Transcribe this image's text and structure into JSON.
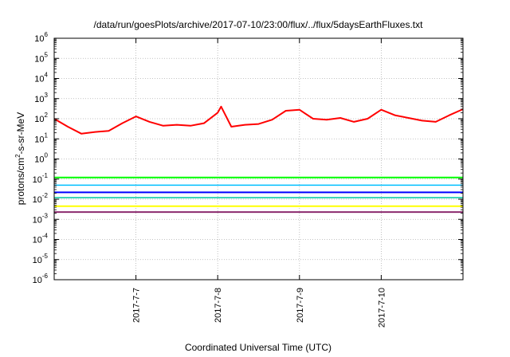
{
  "chart_data": {
    "type": "line",
    "title": "/data/run/goesPlots/archive/2017-07-10/23:00/flux/../flux/5daysEarthFluxes.txt",
    "xlabel": "Coordinated Universal Time (UTC)",
    "ylabel": {
      "pre": "protons/cm",
      "sup": "2",
      "post": "-s-sr-MeV"
    },
    "yscale": "log",
    "ylim": [
      1e-06,
      1000000.0
    ],
    "xlim": [
      "2017-07-06 00:00",
      "2017-07-11 00:00"
    ],
    "y_ticks": [
      {
        "base": "10",
        "exp": "-6"
      },
      {
        "base": "10",
        "exp": "-5"
      },
      {
        "base": "10",
        "exp": "-4"
      },
      {
        "base": "10",
        "exp": "-3"
      },
      {
        "base": "10",
        "exp": "-2"
      },
      {
        "base": "10",
        "exp": "-1"
      },
      {
        "base": "10",
        "exp": "0"
      },
      {
        "base": "10",
        "exp": "1"
      },
      {
        "base": "10",
        "exp": "2"
      },
      {
        "base": "10",
        "exp": "3"
      },
      {
        "base": "10",
        "exp": "4"
      },
      {
        "base": "10",
        "exp": "5"
      },
      {
        "base": "10",
        "exp": "6"
      }
    ],
    "x_ticks": [
      "2017-7-7",
      "2017-7-8",
      "2017-7-9",
      "2017-7-10"
    ],
    "grid": true,
    "series": [
      {
        "color": "#ff0000",
        "width": 2,
        "x": [
          "2017-07-06 00:00",
          "2017-07-06 04:00",
          "2017-07-06 08:00",
          "2017-07-06 12:00",
          "2017-07-06 16:00",
          "2017-07-06 20:00",
          "2017-07-07 00:00",
          "2017-07-07 04:00",
          "2017-07-07 08:00",
          "2017-07-07 12:00",
          "2017-07-07 16:00",
          "2017-07-07 20:00",
          "2017-07-08 00:00",
          "2017-07-08 01:00",
          "2017-07-08 04:00",
          "2017-07-08 08:00",
          "2017-07-08 12:00",
          "2017-07-08 16:00",
          "2017-07-08 20:00",
          "2017-07-09 00:00",
          "2017-07-09 04:00",
          "2017-07-09 08:00",
          "2017-07-09 12:00",
          "2017-07-09 16:00",
          "2017-07-09 20:00",
          "2017-07-10 00:00",
          "2017-07-10 04:00",
          "2017-07-10 08:00",
          "2017-07-10 12:00",
          "2017-07-10 16:00",
          "2017-07-10 20:00",
          "2017-07-11 00:00"
        ],
        "y": [
          100,
          40,
          18,
          22,
          25,
          60,
          130,
          70,
          45,
          50,
          45,
          60,
          200,
          400,
          40,
          50,
          55,
          90,
          250,
          280,
          100,
          90,
          110,
          70,
          100,
          280,
          150,
          110,
          80,
          70,
          150,
          300
        ]
      },
      {
        "color": "#00ff00",
        "width": 2,
        "x": [
          "2017-07-06 00:00",
          "2017-07-07 00:00",
          "2017-07-08 00:00",
          "2017-07-09 00:00",
          "2017-07-10 00:00",
          "2017-07-11 00:00"
        ],
        "y": [
          0.12,
          0.12,
          0.12,
          0.12,
          0.12,
          0.12
        ]
      },
      {
        "color": "#00bfff",
        "width": 1.5,
        "x": [
          "2017-07-06 00:00",
          "2017-07-07 00:00",
          "2017-07-08 00:00",
          "2017-07-09 00:00",
          "2017-07-10 00:00",
          "2017-07-11 00:00"
        ],
        "y": [
          0.05,
          0.05,
          0.05,
          0.05,
          0.05,
          0.05
        ]
      },
      {
        "color": "#0000ff",
        "width": 2,
        "x": [
          "2017-07-06 00:00",
          "2017-07-07 00:00",
          "2017-07-08 00:00",
          "2017-07-09 00:00",
          "2017-07-10 00:00",
          "2017-07-11 00:00"
        ],
        "y": [
          0.022,
          0.022,
          0.022,
          0.022,
          0.022,
          0.022
        ]
      },
      {
        "color": "#00c8a0",
        "width": 1.5,
        "x": [
          "2017-07-06 00:00",
          "2017-07-07 00:00",
          "2017-07-08 00:00",
          "2017-07-09 00:00",
          "2017-07-10 00:00",
          "2017-07-11 00:00"
        ],
        "y": [
          0.012,
          0.012,
          0.012,
          0.012,
          0.012,
          0.012
        ]
      },
      {
        "color": "#ffff00",
        "width": 2,
        "x": [
          "2017-07-06 00:00",
          "2017-07-07 00:00",
          "2017-07-08 00:00",
          "2017-07-09 00:00",
          "2017-07-10 00:00",
          "2017-07-11 00:00"
        ],
        "y": [
          0.0045,
          0.0045,
          0.0045,
          0.0045,
          0.0045,
          0.0045
        ]
      },
      {
        "color": "#8b2a6e",
        "width": 2,
        "x": [
          "2017-07-06 00:00",
          "2017-07-07 00:00",
          "2017-07-08 00:00",
          "2017-07-09 00:00",
          "2017-07-10 00:00",
          "2017-07-11 00:00"
        ],
        "y": [
          0.0023,
          0.0023,
          0.0023,
          0.0023,
          0.0023,
          0.0023
        ]
      }
    ]
  }
}
